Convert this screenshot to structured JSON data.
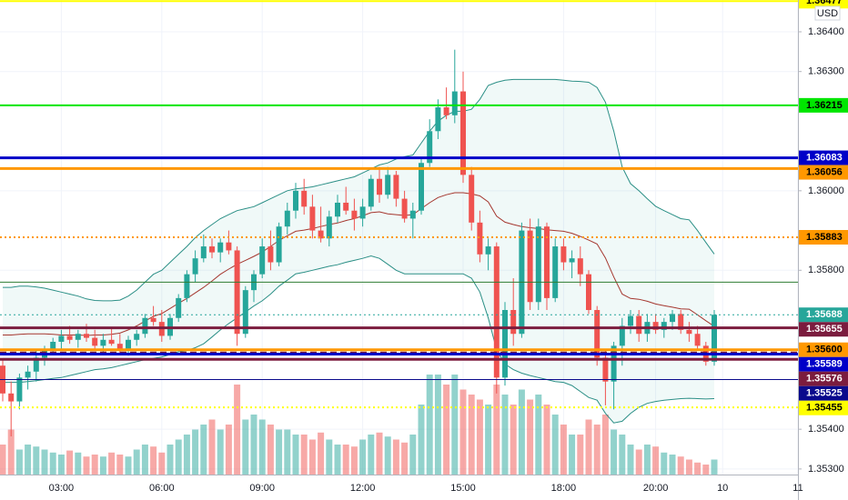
{
  "chart_data": {
    "type": "candlestick",
    "currency": "USD",
    "categories": [
      null,
      null,
      null,
      null,
      null,
      null,
      null,
      "03:00",
      null,
      null,
      null,
      null,
      null,
      null,
      null,
      null,
      null,
      null,
      null,
      "06:00",
      null,
      null,
      null,
      null,
      null,
      null,
      null,
      null,
      null,
      null,
      null,
      "09:00",
      null,
      null,
      null,
      null,
      null,
      null,
      null,
      null,
      null,
      null,
      null,
      "12:00",
      null,
      null,
      null,
      null,
      null,
      null,
      null,
      null,
      null,
      null,
      null,
      "15:00",
      null,
      null,
      null,
      null,
      null,
      null,
      null,
      null,
      null,
      null,
      null,
      "18:00",
      null,
      null,
      null,
      null,
      null,
      null,
      null,
      null,
      null,
      null,
      "20:00",
      null,
      null,
      null,
      null,
      null,
      null,
      null,
      "10",
      null,
      null,
      null,
      null,
      null,
      null,
      null,
      null,
      "11"
    ],
    "open": [
      1.3556,
      1.3549,
      1.3547,
      1.3553,
      1.35545,
      1.3558,
      1.356,
      1.3562,
      1.35635,
      1.35625,
      1.3564,
      1.3563,
      1.3561,
      1.35625,
      1.35615,
      1.356,
      1.35625,
      1.3564,
      1.3568,
      1.3567,
      1.35635,
      1.3568,
      1.3573,
      1.3579,
      1.3583,
      1.3586,
      1.35845,
      1.3587,
      1.3585,
      1.3564,
      1.3575,
      1.3579,
      1.3586,
      1.3582,
      1.3591,
      1.3595,
      1.36,
      1.3596,
      1.359,
      1.3588,
      1.35935,
      1.3597,
      1.3595,
      1.3593,
      1.3596,
      1.3603,
      1.3599,
      1.3604,
      1.3598,
      1.3593,
      1.3595,
      1.3607,
      1.3615,
      1.3621,
      1.3619,
      1.3625,
      1.3604,
      1.3592,
      1.3584,
      1.3586,
      1.3553,
      1.357,
      1.3564,
      1.359,
      1.3572,
      1.3591,
      1.3573,
      1.3586,
      1.3582,
      1.3583,
      1.3579,
      1.357,
      1.3558,
      1.3552,
      1.3561,
      1.3566,
      1.35685,
      1.3564,
      1.3567,
      1.3565,
      1.3567,
      1.3569,
      1.3565,
      1.3564,
      1.3561,
      1.3557,
      null,
      null,
      null,
      null,
      null,
      null,
      null,
      null,
      null,
      null
    ],
    "high": [
      1.35575,
      1.3552,
      1.3554,
      1.3556,
      1.356,
      1.3561,
      1.3563,
      1.3565,
      1.3566,
      1.3565,
      1.35665,
      1.3565,
      1.3564,
      1.35655,
      1.3564,
      1.35635,
      1.3565,
      1.3569,
      1.3571,
      1.357,
      1.3569,
      1.3574,
      1.358,
      1.3585,
      1.3589,
      1.3588,
      1.3588,
      1.359,
      1.3586,
      1.3576,
      1.358,
      1.3588,
      1.359,
      1.3592,
      1.3597,
      1.3602,
      1.3603,
      1.3599,
      1.3596,
      1.3595,
      1.3599,
      1.3601,
      1.3598,
      1.3598,
      1.3604,
      1.3606,
      1.3606,
      1.3605,
      1.36,
      1.3597,
      1.3608,
      1.3618,
      1.3623,
      1.3626,
      1.36355,
      1.363,
      1.3606,
      1.3595,
      1.3588,
      1.3587,
      1.3572,
      1.3578,
      1.3592,
      1.3593,
      1.3593,
      1.3592,
      1.3588,
      1.3588,
      1.3585,
      1.3586,
      1.358,
      1.3571,
      1.356,
      1.3562,
      1.3568,
      1.357,
      1.357,
      1.3569,
      1.3569,
      1.3568,
      1.357,
      1.357,
      1.3567,
      1.3566,
      1.3562,
      1.357,
      null,
      null,
      null,
      null,
      null,
      null,
      null,
      null,
      null,
      null
    ],
    "low": [
      1.3547,
      1.35382,
      1.3545,
      1.355,
      1.3552,
      1.3556,
      1.3559,
      1.356,
      1.35615,
      1.35605,
      1.3562,
      1.356,
      1.35595,
      1.3561,
      1.3559,
      1.35585,
      1.3561,
      1.3563,
      1.3566,
      1.3562,
      1.35625,
      1.3567,
      1.3572,
      1.3577,
      1.3582,
      1.3583,
      1.3582,
      1.3584,
      1.3561,
      1.3563,
      1.3572,
      1.3578,
      1.358,
      1.3581,
      1.3589,
      1.3593,
      1.3594,
      1.3588,
      1.3587,
      1.3586,
      1.3592,
      1.3594,
      1.359,
      1.3591,
      1.3595,
      1.3597,
      1.3598,
      1.3596,
      1.3592,
      1.3588,
      1.3594,
      1.3606,
      1.3613,
      1.3618,
      1.3617,
      1.3602,
      1.359,
      1.3582,
      1.358,
      1.3549,
      1.3551,
      1.3561,
      1.3563,
      1.357,
      1.357,
      1.357,
      1.3572,
      1.358,
      1.3578,
      1.3576,
      1.3569,
      1.3556,
      1.3546,
      1.3545,
      1.3556,
      1.3564,
      1.3562,
      1.3562,
      1.3564,
      1.3563,
      1.3565,
      1.3564,
      1.3562,
      1.356,
      1.3556,
      1.3556,
      null,
      null,
      null,
      null,
      null,
      null,
      null,
      null,
      null,
      null
    ],
    "close": [
      1.3549,
      1.3547,
      1.3553,
      1.35545,
      1.3558,
      1.356,
      1.3562,
      1.35635,
      1.35625,
      1.3564,
      1.3563,
      1.3561,
      1.35625,
      1.35615,
      1.356,
      1.35625,
      1.3564,
      1.3568,
      1.3567,
      1.35635,
      1.3568,
      1.3573,
      1.3579,
      1.3583,
      1.3586,
      1.35845,
      1.3587,
      1.3585,
      1.3564,
      1.3575,
      1.3579,
      1.3586,
      1.3582,
      1.3591,
      1.3595,
      1.36,
      1.3596,
      1.359,
      1.3588,
      1.35935,
      1.3597,
      1.3595,
      1.3593,
      1.3596,
      1.3603,
      1.3599,
      1.3604,
      1.3598,
      1.3593,
      1.3595,
      1.3607,
      1.3615,
      1.3621,
      1.3619,
      1.3625,
      1.3604,
      1.3592,
      1.3584,
      1.3586,
      1.3553,
      1.357,
      1.3564,
      1.359,
      1.3572,
      1.3591,
      1.3573,
      1.3586,
      1.3582,
      1.3583,
      1.3579,
      1.357,
      1.3558,
      1.3552,
      1.3561,
      1.3566,
      1.35685,
      1.3564,
      1.3567,
      1.3565,
      1.3567,
      1.3569,
      1.3565,
      1.3564,
      1.3561,
      1.3557,
      1.35688,
      null,
      null,
      null,
      null,
      null,
      null,
      null,
      null,
      null,
      null
    ],
    "volume": [
      30,
      45,
      25,
      30,
      28,
      25,
      22,
      20,
      24,
      22,
      18,
      20,
      18,
      22,
      20,
      18,
      25,
      30,
      28,
      22,
      30,
      35,
      40,
      45,
      50,
      55,
      45,
      50,
      90,
      55,
      60,
      55,
      50,
      45,
      45,
      40,
      40,
      35,
      42,
      35,
      30,
      30,
      28,
      35,
      40,
      42,
      38,
      35,
      32,
      40,
      70,
      100,
      100,
      90,
      100,
      85,
      80,
      75,
      70,
      90,
      80,
      70,
      85,
      75,
      80,
      70,
      60,
      50,
      40,
      40,
      55,
      50,
      60,
      45,
      40,
      30,
      25,
      30,
      28,
      22,
      20,
      18,
      15,
      12,
      10,
      15,
      null,
      null,
      null,
      null,
      null,
      null,
      null,
      null,
      null,
      null
    ],
    "up_color": "#26a69a",
    "down_color": "#ef5350",
    "bands": {
      "line_color": "#2b8f86",
      "middle_color": "#a5372f",
      "fill": "rgba(38,166,154,0.07)",
      "upper": [
        1.35757,
        1.35757,
        1.3576,
        1.3576,
        1.35758,
        1.35755,
        1.3575,
        1.35745,
        1.3574,
        1.35735,
        1.35728,
        1.35724,
        1.35723,
        1.35723,
        1.35725,
        1.35735,
        1.3575,
        1.3577,
        1.3579,
        1.358,
        1.3582,
        1.3584,
        1.3586,
        1.35882,
        1.359,
        1.35915,
        1.3593,
        1.3594,
        1.3595,
        1.35955,
        1.3596,
        1.3597,
        1.3598,
        1.3599,
        1.36,
        1.36005,
        1.36007,
        1.3601,
        1.36015,
        1.3602,
        1.36025,
        1.3603,
        1.36035,
        1.36045,
        1.36055,
        1.36065,
        1.3607,
        1.3608,
        1.36086,
        1.3609,
        1.3612,
        1.3615,
        1.36175,
        1.3619,
        1.362,
        1.362,
        1.36205,
        1.3623,
        1.36265,
        1.36273,
        1.36278,
        1.3628,
        1.3628,
        1.3628,
        1.3628,
        1.3628,
        1.3628,
        1.36278,
        1.36276,
        1.36275,
        1.36273,
        1.3626,
        1.36223,
        1.3615,
        1.3606,
        1.36018,
        1.36,
        1.3598,
        1.35961,
        1.3595,
        1.3594,
        1.3593,
        1.35927,
        1.359,
        1.3587,
        1.35841,
        null,
        null,
        null,
        null,
        null,
        null,
        null,
        null,
        null,
        null
      ],
      "middle": [
        1.35637,
        1.35637,
        1.35639,
        1.3564,
        1.3564,
        1.3564,
        1.35639,
        1.35637,
        1.35637,
        1.35637,
        1.35636,
        1.35637,
        1.35637,
        1.35639,
        1.35642,
        1.3565,
        1.3566,
        1.35672,
        1.35684,
        1.35691,
        1.35704,
        1.35717,
        1.35729,
        1.35743,
        1.35757,
        1.35773,
        1.3579,
        1.35803,
        1.35815,
        1.35825,
        1.35835,
        1.35846,
        1.3586,
        1.35875,
        1.35887,
        1.35898,
        1.35901,
        1.35905,
        1.3591,
        1.35915,
        1.35919,
        1.35925,
        1.3593,
        1.35937,
        1.35945,
        1.35947,
        1.35942,
        1.3594,
        1.35938,
        1.3594,
        1.35955,
        1.3597,
        1.35983,
        1.3599,
        1.35995,
        1.35995,
        1.35992,
        1.35987,
        1.35972,
        1.35936,
        1.35921,
        1.35915,
        1.3591,
        1.35907,
        1.35905,
        1.35902,
        1.359,
        1.35898,
        1.35893,
        1.35885,
        1.35876,
        1.35866,
        1.35831,
        1.35783,
        1.3574,
        1.35729,
        1.35727,
        1.35722,
        1.35715,
        1.35711,
        1.35707,
        1.35703,
        1.35702,
        1.35688,
        1.35673,
        1.35659,
        null,
        null,
        null,
        null,
        null,
        null,
        null,
        null,
        null,
        null
      ],
      "lower": [
        1.35518,
        1.35518,
        1.35518,
        1.3552,
        1.35522,
        1.35525,
        1.35528,
        1.3553,
        1.35535,
        1.3554,
        1.35545,
        1.3555,
        1.35552,
        1.35555,
        1.3556,
        1.35565,
        1.3557,
        1.35575,
        1.35578,
        1.35582,
        1.35588,
        1.35595,
        1.35598,
        1.35605,
        1.35615,
        1.35632,
        1.3565,
        1.35666,
        1.3568,
        1.35695,
        1.3571,
        1.35723,
        1.3574,
        1.3576,
        1.35775,
        1.35791,
        1.35795,
        1.358,
        1.35805,
        1.3581,
        1.35814,
        1.3582,
        1.35825,
        1.3583,
        1.35836,
        1.3583,
        1.35815,
        1.358,
        1.35791,
        1.35791,
        1.35791,
        1.35791,
        1.35791,
        1.35791,
        1.35791,
        1.35791,
        1.3578,
        1.35745,
        1.3568,
        1.356,
        1.35564,
        1.3555,
        1.35541,
        1.35535,
        1.3553,
        1.35525,
        1.3552,
        1.35518,
        1.3551,
        1.35495,
        1.3548,
        1.35473,
        1.3544,
        1.35416,
        1.3542,
        1.3544,
        1.35455,
        1.35465,
        1.3547,
        1.35473,
        1.35475,
        1.35477,
        1.35478,
        1.35477,
        1.35476,
        1.35477,
        null,
        null,
        null,
        null,
        null,
        null,
        null,
        null,
        null,
        null
      ]
    },
    "levels": [
      {
        "value": 1.36477,
        "label": "1.36477",
        "color": "#ffff00",
        "text_color": "#000000",
        "style": "solid",
        "width": 2
      },
      {
        "value": 1.36215,
        "label": "1.36215",
        "color": "#00e600",
        "text_color": "#000000",
        "style": "solid",
        "width": 2
      },
      {
        "value": 1.36083,
        "label": "1.36083",
        "color": "#0000c8",
        "text_color": "#ffffff",
        "style": "solid",
        "width": 3
      },
      {
        "value": 1.36056,
        "label": "1.36056",
        "color": "#ff9800",
        "text_color": "#000000",
        "style": "solid",
        "width": 3
      },
      {
        "value": 1.35883,
        "label": "1.35883",
        "color": "#ff9800",
        "text_color": "#000000",
        "style": "dotted",
        "width": 2
      },
      {
        "value": 1.3577,
        "color": "#2e7d32",
        "style": "solid",
        "width": 1
      },
      {
        "value": 1.35688,
        "label": "1.35688",
        "color": "#26a69a",
        "text_color": "#ffffff",
        "style": "dotted",
        "width": 1
      },
      {
        "value": 1.35655,
        "label": "1.35655",
        "color": "#7b1c3e",
        "text_color": "#ffffff",
        "style": "solid",
        "width": 3
      },
      {
        "value": 1.356,
        "label": "1.35600",
        "color": "#ff9800",
        "text_color": "#000000",
        "style": "solid",
        "width": 3
      },
      {
        "value": 1.35593,
        "color": "#7b1c3e",
        "style": "dashed",
        "width": 2
      },
      {
        "value": 1.35589,
        "label": "1.35589",
        "color": "#0000c8",
        "text_color": "#ffffff",
        "style": "solid",
        "width": 3
      },
      {
        "value": 1.35576,
        "label": "1.35576",
        "color": "#7b1c3e",
        "text_color": "#ffffff",
        "style": "solid",
        "width": 3
      },
      {
        "value": 1.35525,
        "label": "1.35525",
        "color": "#0a0a8c",
        "text_color": "#ffffff",
        "style": "solid",
        "width": 1
      },
      {
        "value": 1.35455,
        "label": "1.35455",
        "color": "#ffff00",
        "text_color": "#000000",
        "style": "dotted",
        "width": 2
      }
    ],
    "ylim": [
      1.35286,
      1.3648
    ],
    "yticks": [
      {
        "value": 1.364,
        "label": "1.36400"
      },
      {
        "value": 1.363,
        "label": "1.36300"
      },
      {
        "value": 1.36,
        "label": "1.36000"
      },
      {
        "value": 1.358,
        "label": "1.35800"
      },
      {
        "value": 1.354,
        "label": "1.35400"
      },
      {
        "value": 1.353,
        "label": "1.35300"
      }
    ],
    "grid": true
  }
}
